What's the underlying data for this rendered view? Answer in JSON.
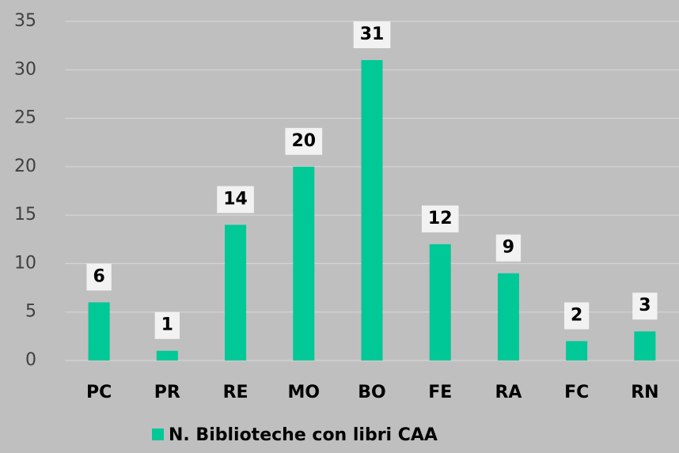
{
  "chart_data": {
    "type": "bar",
    "categories": [
      "PC",
      "PR",
      "RE",
      "MO",
      "BO",
      "FE",
      "RA",
      "FC",
      "RN"
    ],
    "series": [
      {
        "name": "N. Biblioteche con libri CAA",
        "color": "#00c896",
        "values": [
          6,
          1,
          14,
          20,
          31,
          12,
          9,
          2,
          3
        ]
      }
    ],
    "ylim": [
      0,
      35
    ],
    "yticks": [
      0,
      5,
      10,
      15,
      20,
      25,
      30,
      35
    ],
    "grid": true,
    "legend": "bottom"
  }
}
